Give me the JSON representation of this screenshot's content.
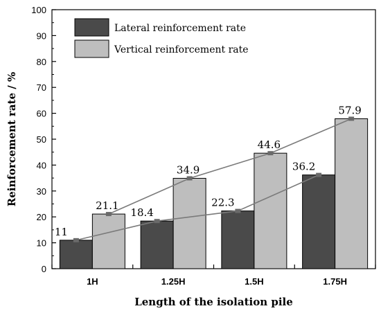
{
  "chart_data": {
    "type": "bar",
    "categories": [
      "1H",
      "1.25H",
      "1.5H",
      "1.75H"
    ],
    "series": [
      {
        "name": "Lateral reinforcement rate",
        "values": [
          11,
          18.4,
          22.3,
          36.2
        ],
        "color": "#4a4a4a"
      },
      {
        "name": "Vertical reinforcement rate",
        "values": [
          21.1,
          34.9,
          44.6,
          57.9
        ],
        "color": "#bebebe"
      }
    ],
    "data_labels": [
      [
        "11",
        "18.4",
        "22.3",
        "36.2"
      ],
      [
        "21.1",
        "34.9",
        "44.6",
        "57.9"
      ]
    ],
    "title": "",
    "xlabel": "Length of the isolation pile",
    "ylabel": "Reinforcement rate / %",
    "ylim": [
      0,
      100
    ],
    "yticks": [
      "0",
      "10",
      "20",
      "30",
      "40",
      "50",
      "60",
      "70",
      "80",
      "90",
      "100"
    ],
    "trend_lines": true,
    "grid": false,
    "legend_position": "top-left"
  }
}
